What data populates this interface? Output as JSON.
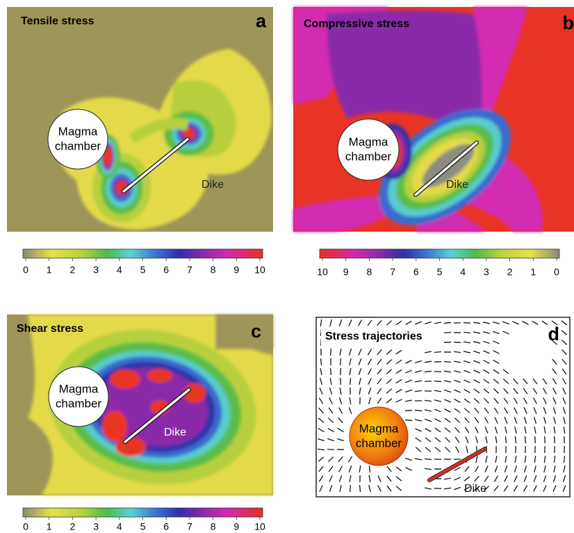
{
  "panels": [
    {
      "letter": "a",
      "title": "Tensile stress",
      "chamber_label": [
        "Magma",
        "chamber"
      ],
      "dike_label": "Dike",
      "colorbar_ticks": [
        0,
        1,
        2,
        3,
        4,
        5,
        6,
        7,
        8,
        9,
        10
      ]
    },
    {
      "letter": "b",
      "title": "Compressive stress",
      "chamber_label": [
        "Magma",
        "chamber"
      ],
      "dike_label": "Dike",
      "colorbar_ticks": [
        10,
        9,
        8,
        7,
        6,
        5,
        4,
        3,
        2,
        1,
        0
      ]
    },
    {
      "letter": "c",
      "title": "Shear stress",
      "chamber_label": [
        "Magma",
        "chamber"
      ],
      "dike_label": "Dike",
      "colorbar_ticks": [
        0,
        1,
        2,
        3,
        4,
        5,
        6,
        7,
        8,
        9,
        10
      ]
    },
    {
      "letter": "d",
      "title": "Stress trajectories",
      "chamber_label": [
        "Magma",
        "chamber"
      ],
      "dike_label": "Dike"
    }
  ]
}
